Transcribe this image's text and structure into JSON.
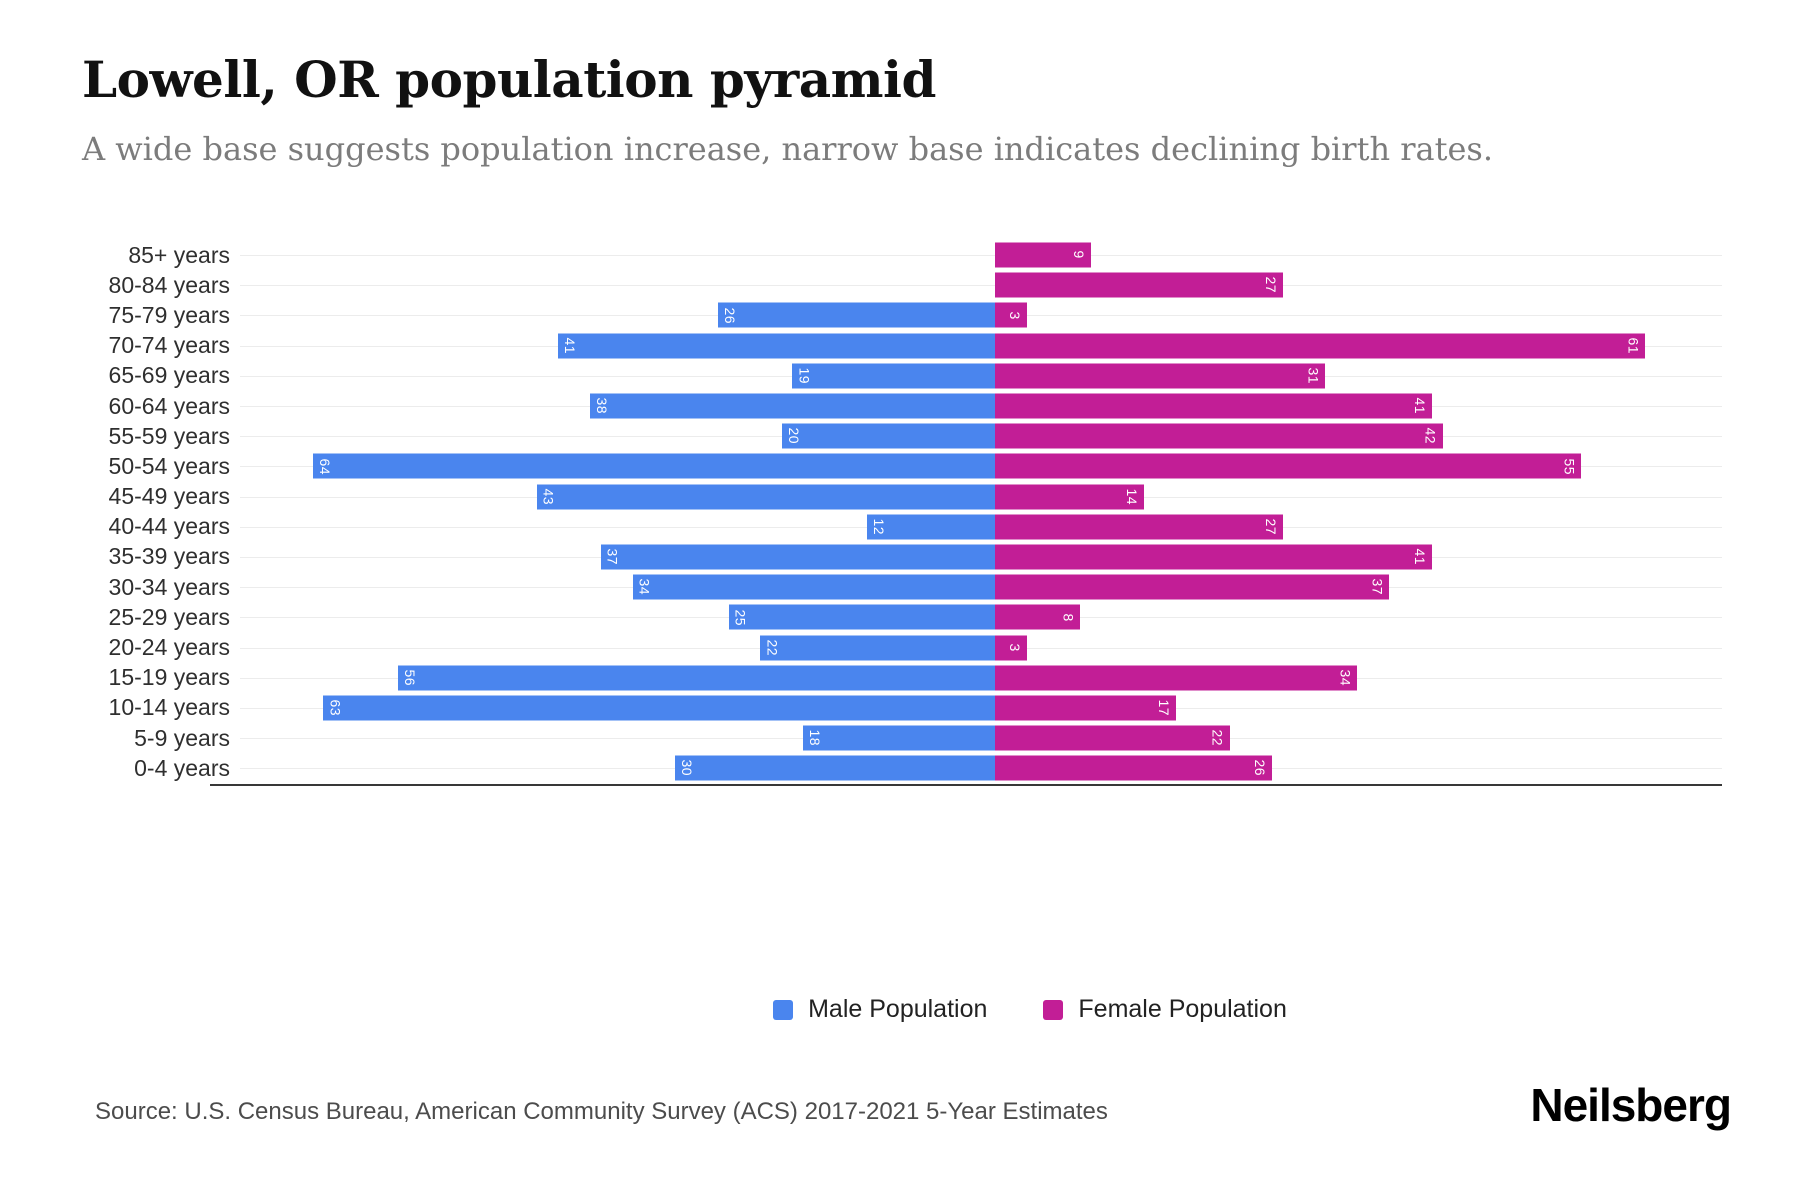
{
  "header": {
    "title": "Lowell, OR population pyramid",
    "subtitle": "A wide base suggests population increase, narrow base indicates declining birth rates."
  },
  "chart_data": {
    "type": "bar",
    "variant": "population-pyramid",
    "orientation": "horizontal",
    "categories": [
      "85+ years",
      "80-84 years",
      "75-79 years",
      "70-74 years",
      "65-69 years",
      "60-64 years",
      "55-59 years",
      "50-54 years",
      "45-49 years",
      "40-44 years",
      "35-39 years",
      "30-34 years",
      "25-29 years",
      "20-24 years",
      "15-19 years",
      "10-14 years",
      "5-9 years",
      "0-4 years"
    ],
    "series": [
      {
        "name": "Male Population",
        "side": "left",
        "color": "#4a85ee",
        "values": [
          0,
          0,
          26,
          41,
          19,
          38,
          20,
          64,
          43,
          12,
          37,
          34,
          25,
          22,
          56,
          63,
          18,
          30
        ]
      },
      {
        "name": "Female Population",
        "side": "right",
        "color": "#c21e96",
        "values": [
          9,
          27,
          3,
          61,
          31,
          41,
          42,
          55,
          14,
          27,
          41,
          37,
          8,
          3,
          34,
          17,
          22,
          26
        ]
      }
    ],
    "value_labels": "inside-end, rotated 90deg, white",
    "x_tick_labels_visible": false,
    "axis_units_left_max": 71,
    "axis_units_right_max": 68,
    "grid": true,
    "gridline_color": "#ececec",
    "axis_line_color": "#383838",
    "legend_position": "bottom-center"
  },
  "legend": {
    "items": [
      {
        "label": "Male Population",
        "color": "#4a85ee"
      },
      {
        "label": "Female Population",
        "color": "#c21e96"
      }
    ]
  },
  "footer": {
    "source": "Source: U.S. Census Bureau, American Community Survey (ACS) 2017-2021 5-Year Estimates",
    "brand": "Neilsberg"
  }
}
